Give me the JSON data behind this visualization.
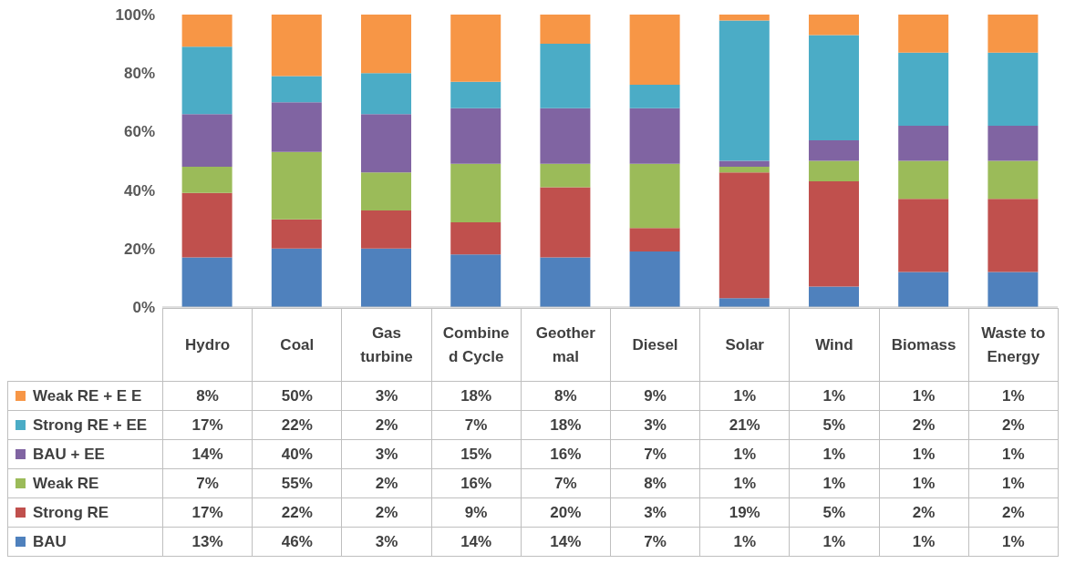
{
  "chart_data": {
    "type": "bar",
    "stacked": true,
    "legend": "bottom left",
    "grid": false,
    "categories": [
      "Hydro",
      "Coal",
      "Gas turbine",
      "Combined Cycle",
      "Geothermal",
      "Diesel",
      "Solar",
      "Wind",
      "Biomass",
      "Waste to Energy"
    ],
    "ylim": [
      0,
      100
    ],
    "yticks": [
      {
        "value": 0,
        "label": "0%"
      },
      {
        "value": 20,
        "label": "20%"
      },
      {
        "value": 40,
        "label": "40%"
      },
      {
        "value": 60,
        "label": "60%"
      },
      {
        "value": 80,
        "label": "80%"
      },
      {
        "value": 100,
        "label": "100%"
      }
    ],
    "series": [
      {
        "name": "BAU",
        "color": "#4f81bd",
        "values": [
          17,
          20,
          20,
          18,
          17,
          19,
          3,
          7,
          12,
          12
        ]
      },
      {
        "name": "Strong RE",
        "color": "#c0504d",
        "values": [
          22,
          10,
          13,
          11,
          24,
          8,
          43,
          36,
          25,
          25
        ]
      },
      {
        "name": "Weak RE",
        "color": "#9bbb59",
        "values": [
          9,
          23,
          13,
          20,
          8,
          22,
          2,
          7,
          13,
          13
        ]
      },
      {
        "name": "BAU + EE",
        "color": "#8064a2",
        "values": [
          18,
          17,
          20,
          19,
          19,
          19,
          2,
          7,
          12,
          12
        ]
      },
      {
        "name": "Strong RE + EE",
        "color": "#4bacc6",
        "values": [
          23,
          9,
          14,
          9,
          22,
          8,
          48,
          36,
          25,
          25
        ]
      },
      {
        "name": "Weak RE + E E",
        "color": "#f79646",
        "values": [
          11,
          21,
          20,
          23,
          10,
          24,
          2,
          7,
          13,
          13
        ]
      }
    ],
    "annotations": [
      "8%",
      "50%",
      "3%",
      "18%",
      "8%",
      "9%",
      "1%",
      "1%",
      "1%",
      "1%",
      "17%",
      "22%",
      "2%",
      "7%",
      "18%",
      "3%",
      "21%",
      "5%",
      "2%",
      "2%",
      "14%",
      "40%",
      "3%",
      "15%",
      "16%",
      "7%",
      "1%",
      "1%",
      "1%",
      "1%",
      "7%",
      "55%",
      "2%",
      "16%",
      "7%",
      "8%",
      "1%",
      "1%",
      "1%",
      "1%",
      "17%",
      "22%",
      "2%",
      "9%",
      "20%",
      "3%",
      "19%",
      "5%",
      "2%",
      "2%",
      "13%",
      "46%",
      "3%",
      "14%",
      "14%",
      "7%",
      "1%",
      "1%",
      "1%",
      "1%"
    ]
  }
}
